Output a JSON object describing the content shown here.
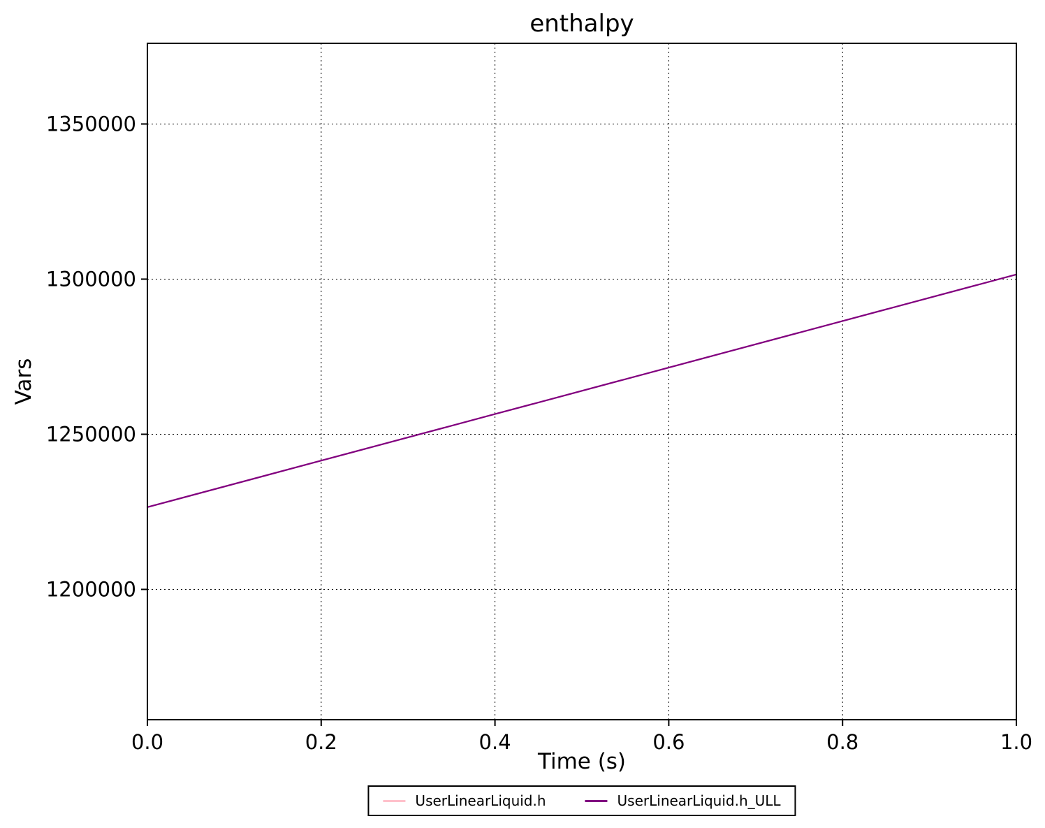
{
  "chart_data": {
    "type": "line",
    "title": "enthalpy",
    "xlabel": "Time (s)",
    "ylabel": "Vars",
    "xlim": [
      0.0,
      1.0
    ],
    "ylim": [
      1158000,
      1376000
    ],
    "x_ticks": [
      0.0,
      0.2,
      0.4,
      0.6,
      0.8,
      1.0
    ],
    "x_tick_labels": [
      "0.0",
      "0.2",
      "0.4",
      "0.6",
      "0.8",
      "1.0"
    ],
    "y_ticks": [
      1200000,
      1250000,
      1300000,
      1350000
    ],
    "y_tick_labels": [
      "1200000",
      "1250000",
      "1300000",
      "1350000"
    ],
    "grid": true,
    "grid_style": "dotted",
    "legend_position": "bottom-center",
    "x": [
      0.0,
      0.2,
      0.4,
      0.6,
      0.8,
      1.0
    ],
    "series": [
      {
        "name": "UserLinearLiquid.h",
        "color": "#FFC0CB",
        "values": [
          1226500,
          1241500,
          1256500,
          1271500,
          1286500,
          1301500
        ]
      },
      {
        "name": "UserLinearLiquid.h_ULL",
        "color": "#800080",
        "values": [
          1226500,
          1241500,
          1256500,
          1271500,
          1286500,
          1301500
        ]
      }
    ]
  }
}
